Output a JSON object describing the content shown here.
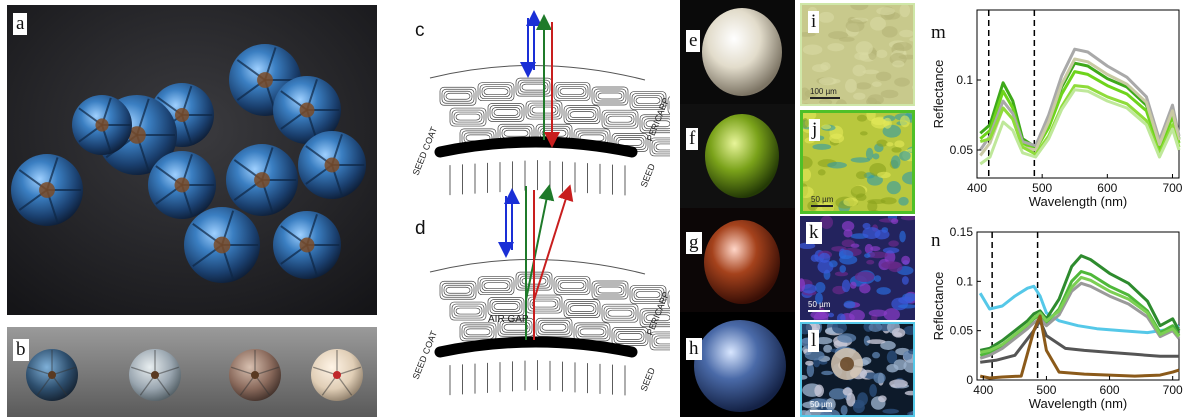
{
  "panels": {
    "a": "a",
    "b": "b",
    "c": "c",
    "d": "d",
    "e": "e",
    "f": "f",
    "g": "g",
    "h": "h",
    "i": "i",
    "j": "j",
    "k": "k",
    "l": "l",
    "m": "m",
    "n": "n"
  },
  "diagram": {
    "seed_coat": "SEED COAT",
    "seed": "SEED",
    "pericarp": "PERICARP",
    "air_gap": "AIR GAP"
  },
  "scalebars": {
    "i": "100 µm",
    "j": "50 µm",
    "k": "50 µm",
    "l": "50 µm"
  },
  "colors": {
    "blue_arrow": "#1a2fd6",
    "green_arrow": "#1f7a2a",
    "red_arrow": "#c81e1e",
    "plot_bg": "#ffffff"
  },
  "chart_data": [
    {
      "type": "line",
      "panel": "m",
      "xlabel": "Wavelength (nm)",
      "ylabel": "Reflectance",
      "xlim": [
        400,
        710
      ],
      "ylim": [
        0.03,
        0.15
      ],
      "xticks": [
        400,
        500,
        600,
        700
      ],
      "yticks": [
        0.05,
        0.1
      ],
      "xtick_labels": [
        "400",
        "500",
        "600",
        "700"
      ],
      "ytick_labels": [
        "0.05",
        "0.1"
      ],
      "dashed_lines_x": [
        418,
        488
      ],
      "series": [
        {
          "color": "#3ea91a",
          "x": [
            405,
            420,
            440,
            455,
            470,
            490,
            510,
            530,
            550,
            570,
            600,
            630,
            660,
            680,
            700,
            710
          ],
          "y": [
            0.062,
            0.068,
            0.098,
            0.085,
            0.058,
            0.052,
            0.07,
            0.095,
            0.112,
            0.11,
            0.101,
            0.095,
            0.082,
            0.052,
            0.078,
            0.058
          ]
        },
        {
          "color": "#6ed41c",
          "x": [
            405,
            420,
            440,
            455,
            470,
            490,
            510,
            530,
            550,
            570,
            600,
            630,
            660,
            680,
            700,
            710
          ],
          "y": [
            0.058,
            0.064,
            0.092,
            0.08,
            0.055,
            0.05,
            0.066,
            0.09,
            0.106,
            0.104,
            0.096,
            0.09,
            0.078,
            0.05,
            0.074,
            0.055
          ]
        },
        {
          "color": "#a9a9a9",
          "x": [
            405,
            420,
            440,
            455,
            470,
            490,
            510,
            530,
            550,
            570,
            600,
            630,
            660,
            680,
            700,
            710
          ],
          "y": [
            0.05,
            0.06,
            0.085,
            0.076,
            0.056,
            0.053,
            0.075,
            0.103,
            0.122,
            0.12,
            0.11,
            0.102,
            0.088,
            0.057,
            0.082,
            0.06
          ]
        },
        {
          "color": "#c9c9a4",
          "x": [
            405,
            420,
            440,
            455,
            470,
            490,
            510,
            530,
            550,
            570,
            600,
            630,
            660,
            680,
            700,
            710
          ],
          "y": [
            0.046,
            0.055,
            0.08,
            0.072,
            0.052,
            0.05,
            0.07,
            0.097,
            0.115,
            0.113,
            0.104,
            0.097,
            0.084,
            0.054,
            0.078,
            0.057
          ]
        },
        {
          "color": "#8fdc3a",
          "x": [
            405,
            420,
            440,
            455,
            470,
            490,
            510,
            530,
            550,
            570,
            600,
            630,
            660,
            680,
            700,
            710
          ],
          "y": [
            0.056,
            0.058,
            0.08,
            0.072,
            0.052,
            0.047,
            0.06,
            0.081,
            0.096,
            0.095,
            0.088,
            0.083,
            0.071,
            0.047,
            0.068,
            0.052
          ]
        },
        {
          "color": "#bfe89a",
          "x": [
            405,
            420,
            440,
            455,
            470,
            490,
            510,
            530,
            550,
            570,
            600,
            630,
            660,
            680,
            700,
            710
          ],
          "y": [
            0.04,
            0.045,
            0.07,
            0.064,
            0.048,
            0.045,
            0.058,
            0.079,
            0.093,
            0.092,
            0.085,
            0.08,
            0.068,
            0.045,
            0.065,
            0.05
          ]
        }
      ]
    },
    {
      "type": "line",
      "panel": "n",
      "xlabel": "Wavelength (nm)",
      "ylabel": "Reflectance",
      "xlim": [
        390,
        710
      ],
      "ylim": [
        0,
        0.15
      ],
      "xticks": [
        400,
        500,
        600,
        700
      ],
      "yticks": [
        0,
        0.05,
        0.1,
        0.15
      ],
      "xtick_labels": [
        "400",
        "500",
        "600",
        "700"
      ],
      "ytick_labels": [
        "0",
        "0.05",
        "0.1",
        "0.15"
      ],
      "dashed_lines_x": [
        414,
        486
      ],
      "series": [
        {
          "color": "#55c8e8",
          "x": [
            395,
            410,
            430,
            450,
            470,
            480,
            490,
            500,
            520,
            550,
            580,
            620,
            660,
            700,
            710
          ],
          "y": [
            0.088,
            0.072,
            0.075,
            0.085,
            0.093,
            0.095,
            0.085,
            0.068,
            0.06,
            0.055,
            0.052,
            0.05,
            0.048,
            0.052,
            0.055
          ]
        },
        {
          "color": "#2e8b2e",
          "x": [
            395,
            410,
            430,
            450,
            470,
            480,
            490,
            500,
            520,
            540,
            555,
            570,
            600,
            630,
            660,
            680,
            700,
            710
          ],
          "y": [
            0.03,
            0.032,
            0.04,
            0.05,
            0.06,
            0.067,
            0.07,
            0.062,
            0.082,
            0.115,
            0.126,
            0.122,
            0.108,
            0.098,
            0.08,
            0.055,
            0.062,
            0.05
          ]
        },
        {
          "color": "#4fb83a",
          "x": [
            395,
            410,
            430,
            450,
            470,
            480,
            490,
            500,
            520,
            540,
            555,
            570,
            600,
            630,
            660,
            680,
            700,
            710
          ],
          "y": [
            0.025,
            0.028,
            0.035,
            0.045,
            0.055,
            0.062,
            0.066,
            0.058,
            0.072,
            0.1,
            0.11,
            0.107,
            0.095,
            0.086,
            0.07,
            0.048,
            0.055,
            0.045
          ]
        },
        {
          "color": "#9a9a9a",
          "x": [
            395,
            410,
            430,
            450,
            470,
            480,
            490,
            500,
            520,
            540,
            555,
            570,
            600,
            630,
            660,
            680,
            700,
            710
          ],
          "y": [
            0.022,
            0.025,
            0.032,
            0.042,
            0.052,
            0.058,
            0.062,
            0.055,
            0.066,
            0.09,
            0.098,
            0.095,
            0.085,
            0.077,
            0.064,
            0.044,
            0.05,
            0.042
          ]
        },
        {
          "color": "#7ccf54",
          "x": [
            395,
            410,
            430,
            450,
            470,
            480,
            490,
            500,
            520,
            540,
            555,
            570,
            600,
            630,
            660,
            680,
            700,
            710
          ],
          "y": [
            0.028,
            0.03,
            0.036,
            0.046,
            0.056,
            0.063,
            0.068,
            0.06,
            0.07,
            0.094,
            0.104,
            0.101,
            0.09,
            0.082,
            0.068,
            0.046,
            0.052,
            0.044
          ]
        },
        {
          "color": "#555555",
          "x": [
            395,
            420,
            450,
            480,
            490,
            500,
            530,
            560,
            600,
            640,
            680,
            700,
            710
          ],
          "y": [
            0.018,
            0.02,
            0.025,
            0.05,
            0.06,
            0.045,
            0.032,
            0.03,
            0.028,
            0.026,
            0.024,
            0.024,
            0.024
          ]
        },
        {
          "color": "#8b5a1a",
          "x": [
            395,
            410,
            430,
            460,
            480,
            490,
            500,
            520,
            560,
            600,
            640,
            680,
            700,
            710
          ],
          "y": [
            0.004,
            0.002,
            0.003,
            0.004,
            0.05,
            0.065,
            0.03,
            0.008,
            0.006,
            0.005,
            0.004,
            0.005,
            0.008,
            0.01
          ]
        }
      ]
    }
  ]
}
